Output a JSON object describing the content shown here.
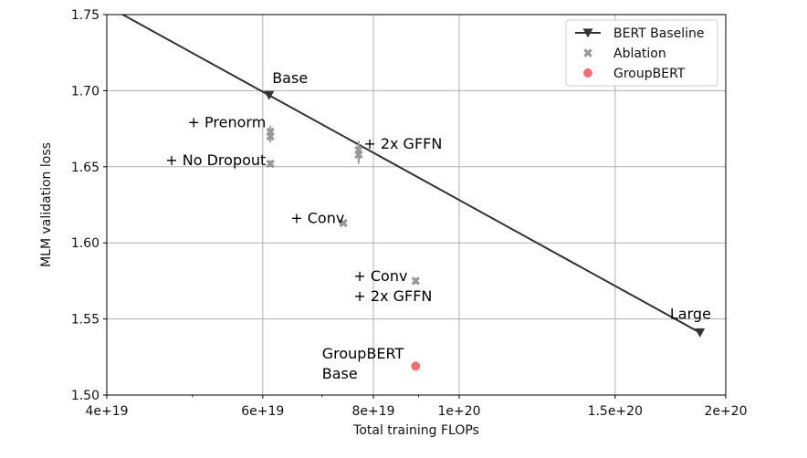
{
  "chart_data": {
    "type": "scatter",
    "title": "",
    "xlabel": "Total training FLOPs",
    "ylabel": "MLM validation loss",
    "xscale": "log",
    "xlim": [
      4e+19,
      2e+20
    ],
    "ylim": [
      1.5,
      1.75
    ],
    "grid": true,
    "legend_position": "top-right",
    "x_ticks": [
      {
        "value": 4e+19,
        "label": "4e+19"
      },
      {
        "value": 6e+19,
        "label": "6e+19"
      },
      {
        "value": 8e+19,
        "label": "8e+19"
      },
      {
        "value": 1e+20,
        "label": "1e+20"
      },
      {
        "value": 1.5e+20,
        "label": "1.5e+20"
      },
      {
        "value": 2e+20,
        "label": "2e+20"
      }
    ],
    "x_minor_ticks": [
      5e+19,
      7e+19,
      9e+19
    ],
    "y_ticks": [
      {
        "value": 1.5,
        "label": "1.50"
      },
      {
        "value": 1.55,
        "label": "1.55"
      },
      {
        "value": 1.6,
        "label": "1.60"
      },
      {
        "value": 1.65,
        "label": "1.65"
      },
      {
        "value": 1.7,
        "label": "1.70"
      },
      {
        "value": 1.75,
        "label": "1.75"
      }
    ],
    "series": [
      {
        "name": "BERT Baseline",
        "kind": "line",
        "color": "#333333",
        "marker": "triangle-down",
        "extends_beyond_axes": true,
        "points": [
          {
            "x": 6.1e+19,
            "y": 1.697
          },
          {
            "x": 1.87e+20,
            "y": 1.541
          }
        ]
      },
      {
        "name": "Ablation",
        "kind": "scatter",
        "color": "#999999",
        "marker": "x",
        "points": [
          {
            "x": 6.12e+19,
            "y": 1.673,
            "err": 0.004
          },
          {
            "x": 6.12e+19,
            "y": 1.67,
            "err": 0.004
          },
          {
            "x": 6.12e+19,
            "y": 1.652,
            "err": 0.002
          },
          {
            "x": 7.7e+19,
            "y": 1.661,
            "err": 0.006
          },
          {
            "x": 7.7e+19,
            "y": 1.658,
            "err": 0.006
          },
          {
            "x": 7.4e+19,
            "y": 1.613,
            "err": 0.001
          },
          {
            "x": 8.93e+19,
            "y": 1.575,
            "err": 0.002
          }
        ]
      },
      {
        "name": "GroupBERT",
        "kind": "scatter",
        "color": "#f0707a",
        "marker": "circle",
        "points": [
          {
            "x": 8.93e+19,
            "y": 1.519
          }
        ]
      }
    ],
    "annotations": [
      {
        "lines": [
          "Base"
        ],
        "x": 6.15e+19,
        "y": 1.705,
        "anchor": "start"
      },
      {
        "lines": [
          "+ Prenorm"
        ],
        "x": 6.05e+19,
        "y": 1.676,
        "anchor": "end"
      },
      {
        "lines": [
          "+ 2x GFFN"
        ],
        "x": 7.8e+19,
        "y": 1.662,
        "anchor": "start"
      },
      {
        "lines": [
          "+ No Dropout"
        ],
        "x": 6.05e+19,
        "y": 1.651,
        "anchor": "end"
      },
      {
        "lines": [
          "+ Conv"
        ],
        "x": 6.45e+19,
        "y": 1.613,
        "anchor": "start"
      },
      {
        "lines": [
          "+ Conv",
          "+ 2x GFFN"
        ],
        "x": 7.6e+19,
        "y": 1.575,
        "anchor": "start"
      },
      {
        "lines": [
          "GroupBERT",
          "Base"
        ],
        "x": 7e+19,
        "y": 1.524,
        "anchor": "start"
      },
      {
        "lines": [
          "Large"
        ],
        "x": 1.73e+20,
        "y": 1.55,
        "anchor": "start"
      }
    ]
  }
}
